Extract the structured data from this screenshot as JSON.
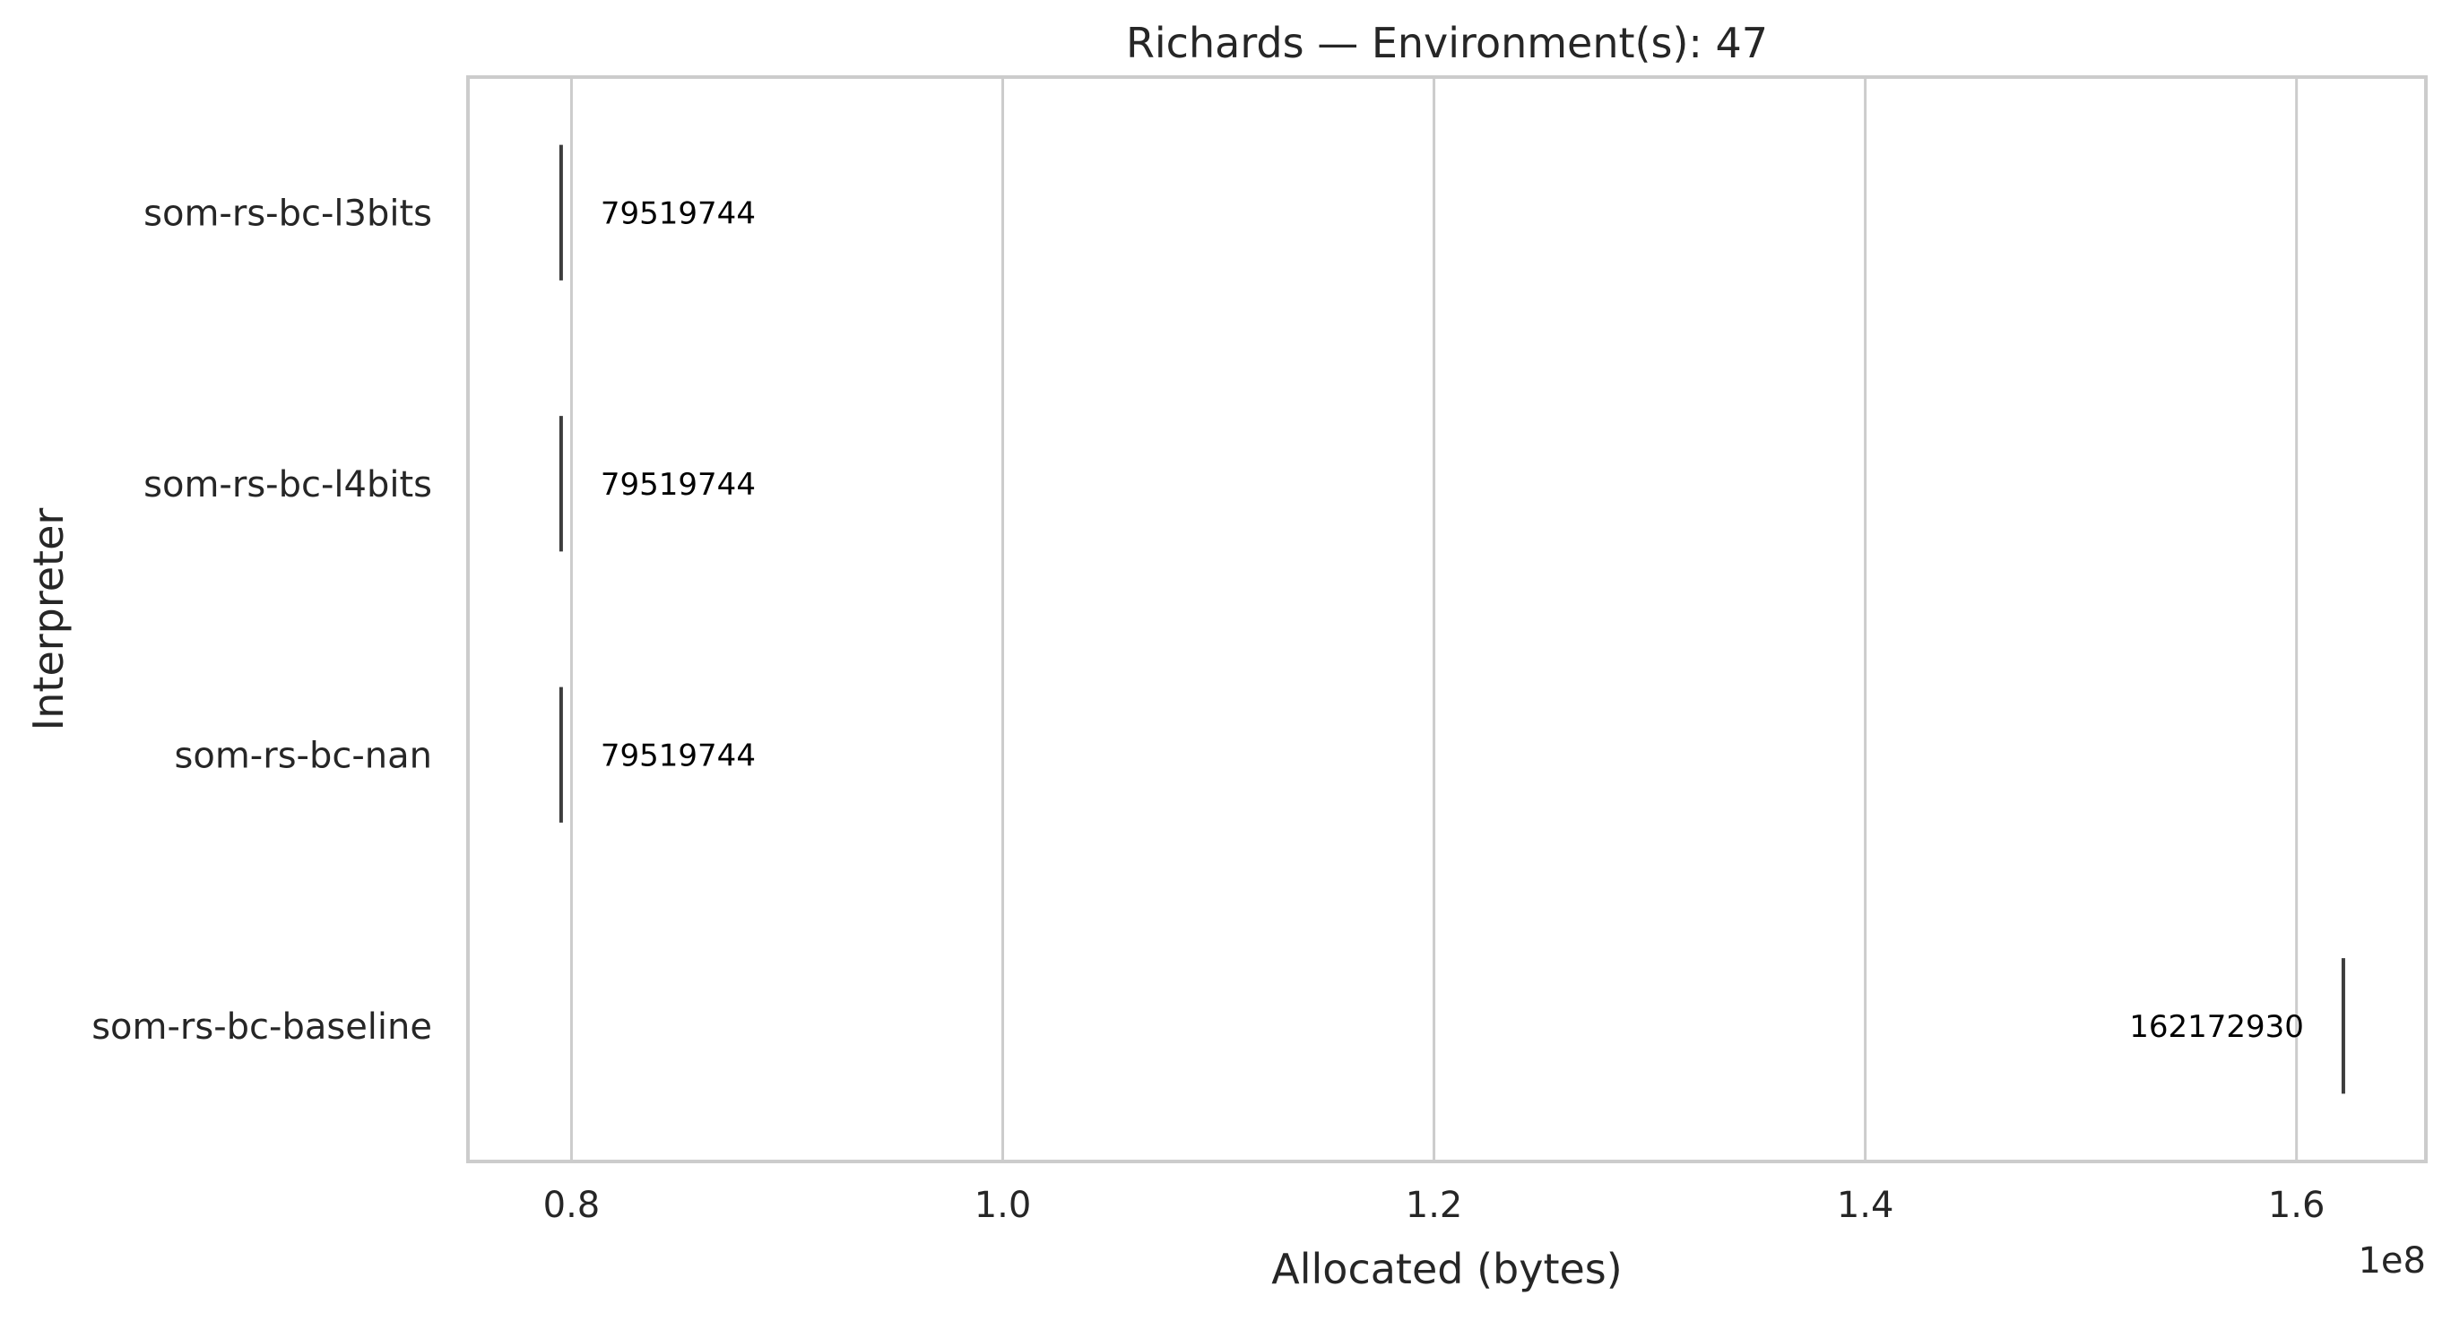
{
  "chart_data": {
    "type": "box",
    "title": "Richards — Environment(s): 47",
    "xlabel": "Allocated (bytes)",
    "ylabel": "Interpreter",
    "x_scale_label": "1e8",
    "xlim": [
      75200000,
      166000000
    ],
    "x_tick_values": [
      80000000,
      100000000,
      120000000,
      140000000,
      160000000
    ],
    "x_tick_labels": [
      "0.8",
      "1.0",
      "1.2",
      "1.4",
      "1.6"
    ],
    "grid": "x",
    "categories": [
      "som-rs-bc-l3bits",
      "som-rs-bc-l4bits",
      "som-rs-bc-nan",
      "som-rs-bc-baseline"
    ],
    "values": [
      79519744,
      79519744,
      79519744,
      162172930
    ],
    "value_labels": [
      "79519744",
      "79519744",
      "79519744",
      "162172930"
    ],
    "colors": {
      "grid": "#cccccc",
      "spine": "#cccccc",
      "mark": "#3d3d3d",
      "text": "#262626",
      "data_label": "#000000"
    }
  }
}
